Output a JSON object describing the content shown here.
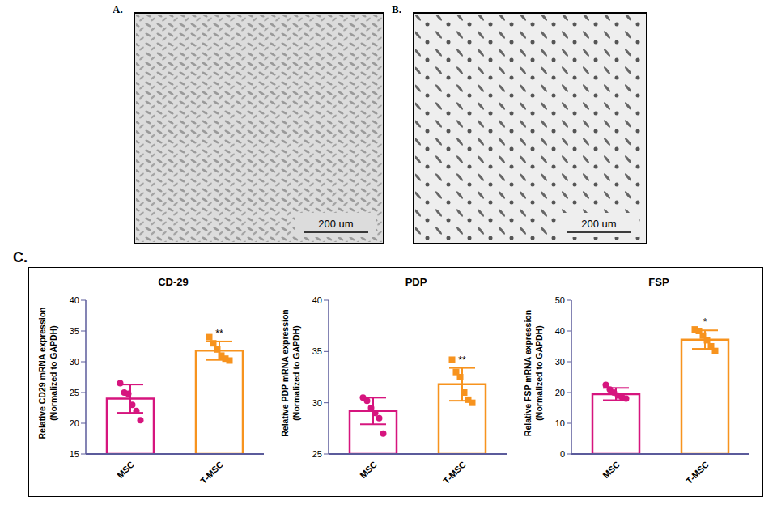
{
  "panels": [
    {
      "label": "A.",
      "scale_bar": "200 um"
    },
    {
      "label": "B.",
      "scale_bar": "200 um"
    }
  ],
  "chart_panel_label": "C.",
  "chart_data": [
    {
      "type": "bar",
      "title": "CD-29",
      "y_label": "Relative CD29 mRNA expression (Normalized to GAPDH)",
      "categories": [
        "MSC",
        "T-MSC"
      ],
      "values": [
        24,
        31.8
      ],
      "errors": [
        2.3,
        1.5
      ],
      "points": [
        [
          26.5,
          25,
          24.8,
          23,
          22,
          20.5
        ],
        [
          34,
          33,
          32,
          31,
          30.5,
          30.2
        ]
      ],
      "colors": [
        "#d6157e",
        "#f7931e"
      ],
      "ylim": [
        15,
        40
      ],
      "yticks": [
        15,
        20,
        25,
        30,
        35,
        40
      ],
      "annotations": [
        {
          "category": "T-MSC",
          "text": "**"
        }
      ]
    },
    {
      "type": "bar",
      "title": "PDP",
      "y_label": "Relative PDP mRNA expression (Normalized to GAPDH)",
      "categories": [
        "MSC",
        "T-MSC"
      ],
      "values": [
        29.2,
        31.8
      ],
      "errors": [
        1.3,
        1.6
      ],
      "points": [
        [
          30.5,
          30.2,
          29.5,
          29,
          28.5,
          27
        ],
        [
          34.2,
          33,
          32.5,
          31,
          30.3,
          30
        ]
      ],
      "colors": [
        "#d6157e",
        "#f7931e"
      ],
      "ylim": [
        25,
        40
      ],
      "yticks": [
        25,
        30,
        35,
        40
      ],
      "annotations": [
        {
          "category": "T-MSC",
          "text": "**"
        }
      ]
    },
    {
      "type": "bar",
      "title": "FSP",
      "y_label": "Relative FSP mRNA expression (Normalized to GAPDH)",
      "categories": [
        "MSC",
        "T-MSC"
      ],
      "values": [
        19.5,
        37.2
      ],
      "errors": [
        2,
        3
      ],
      "points": [
        [
          22.5,
          21,
          20,
          19,
          18.5,
          18
        ],
        [
          40.5,
          40,
          38.5,
          37,
          35,
          33.5
        ]
      ],
      "colors": [
        "#d6157e",
        "#f7931e"
      ],
      "ylim": [
        0,
        50
      ],
      "yticks": [
        0,
        10,
        20,
        30,
        40,
        50
      ],
      "annotations": [
        {
          "category": "T-MSC",
          "text": "*"
        }
      ]
    }
  ]
}
